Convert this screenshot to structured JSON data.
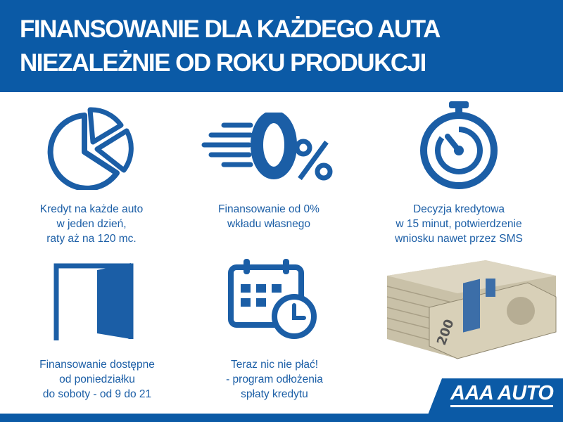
{
  "header": {
    "line1": "FINANSOWANIE DLA KAŻDEGO AUTA",
    "line2": "NIEZALEŻNIE OD ROKU PRODUKCJI"
  },
  "features": [
    {
      "icon": "pie-chart-icon",
      "lines": [
        "Kredyt na każde auto",
        "w jeden dzień,",
        "raty aż na 120 mc."
      ]
    },
    {
      "icon": "zero-percent-icon",
      "lines": [
        "Finansowanie od 0%",
        "wkładu własnego"
      ]
    },
    {
      "icon": "stopwatch-icon",
      "lines": [
        "Decyzja kredytowa",
        "w 15 minut, potwierdzenie",
        "wniosku nawet przez SMS"
      ]
    },
    {
      "icon": "open-door-icon",
      "lines": [
        "Finansowanie dostępne",
        "od poniedziałku",
        "do soboty - od 9 do 21"
      ]
    },
    {
      "icon": "calendar-clock-icon",
      "lines": [
        "Teraz nic nie płać!",
        "- program odłożenia",
        "spłaty kredytu"
      ]
    }
  ],
  "banknote_label": "200",
  "brand": {
    "logo": "AAA AUTO",
    "color": "#0b5aa6"
  }
}
